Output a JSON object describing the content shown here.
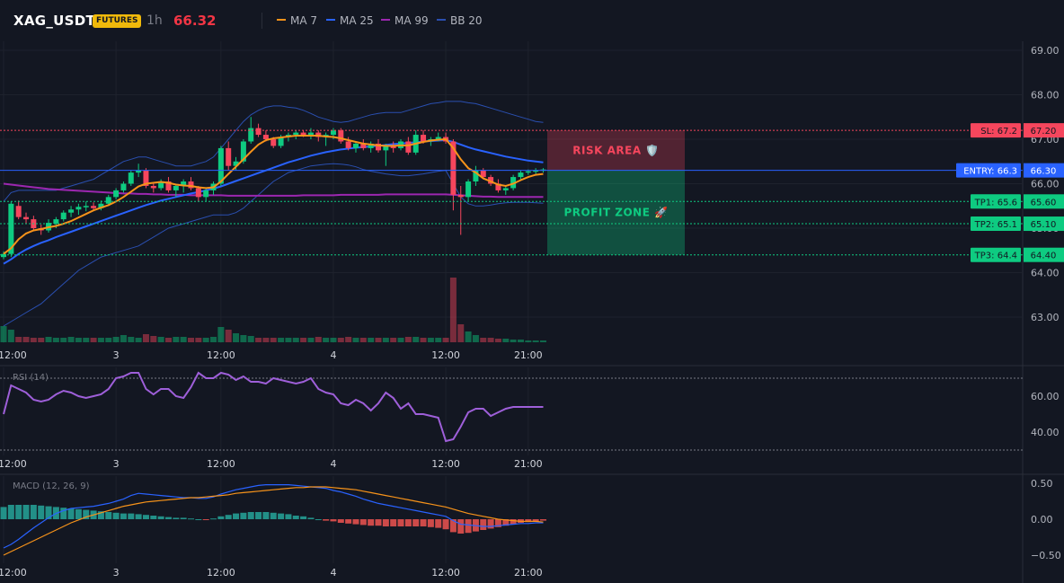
{
  "header": {
    "symbol": "XAG_USDT",
    "badge": "FUTURES",
    "timeframe": "1h",
    "last_price": "66.32",
    "legend": [
      {
        "label": "MA 7",
        "color": "#f7931a"
      },
      {
        "label": "MA 25",
        "color": "#2962ff"
      },
      {
        "label": "MA 99",
        "color": "#9c27b0"
      },
      {
        "label": "BB 20",
        "color": "#2a4fb0"
      }
    ]
  },
  "colors": {
    "up": "#0ecb81",
    "down": "#f6465d",
    "background": "#131722",
    "grid": "#1e222d"
  },
  "chart_data": [
    {
      "type": "candlestick",
      "title": "XAG_USDT",
      "ylim": [
        62.4,
        69.2
      ],
      "y_ticks": [
        "69.00",
        "68.00",
        "67.00",
        "66.00",
        "65.00",
        "64.00",
        "63.00"
      ],
      "x_ticks": [
        "12:00",
        "3",
        "12:00",
        "4",
        "12:00",
        "21:00"
      ],
      "ohlc": [
        [
          64.35,
          64.48,
          64.3,
          64.42
        ],
        [
          64.42,
          65.6,
          64.35,
          65.55
        ],
        [
          65.5,
          65.62,
          65.2,
          65.25
        ],
        [
          65.25,
          65.35,
          65.1,
          65.2
        ],
        [
          65.2,
          65.28,
          64.95,
          65.0
        ],
        [
          65.0,
          65.08,
          64.85,
          64.95
        ],
        [
          64.95,
          65.2,
          64.9,
          65.12
        ],
        [
          65.1,
          65.25,
          65.0,
          65.2
        ],
        [
          65.2,
          65.4,
          65.15,
          65.35
        ],
        [
          65.35,
          65.5,
          65.25,
          65.42
        ],
        [
          65.42,
          65.55,
          65.3,
          65.48
        ],
        [
          65.48,
          65.6,
          65.38,
          65.5
        ],
        [
          65.5,
          65.58,
          65.4,
          65.45
        ],
        [
          65.45,
          65.62,
          65.4,
          65.55
        ],
        [
          65.55,
          65.75,
          65.5,
          65.7
        ],
        [
          65.7,
          65.9,
          65.65,
          65.85
        ],
        [
          65.85,
          66.05,
          65.8,
          66.0
        ],
        [
          66.0,
          66.3,
          65.95,
          66.25
        ],
        [
          66.25,
          66.45,
          66.15,
          66.3
        ],
        [
          66.3,
          66.35,
          65.9,
          65.95
        ],
        [
          65.95,
          66.0,
          65.8,
          65.9
        ],
        [
          65.9,
          66.1,
          65.85,
          66.05
        ],
        [
          66.05,
          66.15,
          65.8,
          65.85
        ],
        [
          65.85,
          66.0,
          65.7,
          65.95
        ],
        [
          65.95,
          66.1,
          65.8,
          66.05
        ],
        [
          66.05,
          66.15,
          65.85,
          65.9
        ],
        [
          65.9,
          65.95,
          65.6,
          65.7
        ],
        [
          65.7,
          65.9,
          65.6,
          65.85
        ],
        [
          65.85,
          66.05,
          65.75,
          66.0
        ],
        [
          66.0,
          66.85,
          65.95,
          66.8
        ],
        [
          66.8,
          66.95,
          66.3,
          66.4
        ],
        [
          66.4,
          66.6,
          66.3,
          66.5
        ],
        [
          66.5,
          67.0,
          66.45,
          66.95
        ],
        [
          66.95,
          67.5,
          66.9,
          67.25
        ],
        [
          67.25,
          67.35,
          67.05,
          67.1
        ],
        [
          67.1,
          67.2,
          66.95,
          67.0
        ],
        [
          67.0,
          67.05,
          66.8,
          66.85
        ],
        [
          66.85,
          67.1,
          66.8,
          67.05
        ],
        [
          67.05,
          67.15,
          66.95,
          67.1
        ],
        [
          67.1,
          67.2,
          67.0,
          67.15
        ],
        [
          67.15,
          67.2,
          67.05,
          67.1
        ],
        [
          67.1,
          67.25,
          67.0,
          67.15
        ],
        [
          67.15,
          67.2,
          66.95,
          67.05
        ],
        [
          67.05,
          67.15,
          66.85,
          67.1
        ],
        [
          67.1,
          67.25,
          67.0,
          67.2
        ],
        [
          67.2,
          67.25,
          66.9,
          66.95
        ],
        [
          66.95,
          67.05,
          66.75,
          66.8
        ],
        [
          66.8,
          66.95,
          66.7,
          66.9
        ],
        [
          66.9,
          67.0,
          66.75,
          66.8
        ],
        [
          66.8,
          66.95,
          66.7,
          66.9
        ],
        [
          66.9,
          67.0,
          66.7,
          66.75
        ],
        [
          66.75,
          66.9,
          66.4,
          66.85
        ],
        [
          66.85,
          66.95,
          66.7,
          66.8
        ],
        [
          66.8,
          67.0,
          66.75,
          66.95
        ],
        [
          66.95,
          67.05,
          66.65,
          66.7
        ],
        [
          66.7,
          67.2,
          66.65,
          67.1
        ],
        [
          67.1,
          67.2,
          66.9,
          66.95
        ],
        [
          66.95,
          67.05,
          66.85,
          67.0
        ],
        [
          67.0,
          67.15,
          66.95,
          67.05
        ],
        [
          67.05,
          67.15,
          66.9,
          66.95
        ],
        [
          66.95,
          67.0,
          65.4,
          65.75
        ],
        [
          65.75,
          65.95,
          64.85,
          65.7
        ],
        [
          65.7,
          66.1,
          65.6,
          66.05
        ],
        [
          66.05,
          66.4,
          65.95,
          66.3
        ],
        [
          66.3,
          66.35,
          66.1,
          66.15
        ],
        [
          66.15,
          66.2,
          65.95,
          66.0
        ],
        [
          66.0,
          66.1,
          65.8,
          65.85
        ],
        [
          65.85,
          65.95,
          65.75,
          65.9
        ],
        [
          65.9,
          66.2,
          65.85,
          66.15
        ],
        [
          66.15,
          66.3,
          66.1,
          66.25
        ],
        [
          66.25,
          66.32,
          66.2,
          66.28
        ],
        [
          66.28,
          66.35,
          66.22,
          66.3
        ],
        [
          66.3,
          66.35,
          66.25,
          66.32
        ]
      ],
      "volume": [
        18,
        14,
        6,
        6,
        5,
        5,
        6,
        5,
        5,
        6,
        5,
        5,
        5,
        5,
        5,
        6,
        8,
        6,
        5,
        9,
        7,
        6,
        5,
        6,
        6,
        5,
        5,
        5,
        6,
        17,
        14,
        10,
        8,
        7,
        5,
        5,
        5,
        5,
        5,
        5,
        5,
        5,
        6,
        5,
        5,
        5,
        6,
        5,
        5,
        5,
        5,
        5,
        5,
        5,
        6,
        6,
        5,
        5,
        5,
        5,
        72,
        20,
        12,
        8,
        5,
        5,
        4,
        4,
        3,
        3,
        2,
        2,
        2
      ],
      "ma7": [
        64.42,
        64.55,
        64.75,
        64.88,
        64.95,
        64.98,
        65.02,
        65.05,
        65.1,
        65.16,
        65.24,
        65.32,
        65.4,
        65.46,
        65.52,
        65.6,
        65.7,
        65.82,
        65.94,
        66.0,
        66.02,
        66.04,
        66.02,
        65.98,
        65.96,
        65.95,
        65.92,
        65.9,
        65.92,
        66.05,
        66.22,
        66.38,
        66.55,
        66.72,
        66.88,
        66.98,
        67.02,
        67.04,
        67.06,
        67.08,
        67.08,
        67.08,
        67.08,
        67.06,
        67.05,
        67.02,
        66.98,
        66.94,
        66.9,
        66.88,
        66.86,
        66.85,
        66.85,
        66.86,
        66.86,
        66.9,
        66.94,
        66.97,
        66.99,
        67.0,
        66.8,
        66.55,
        66.35,
        66.25,
        66.12,
        66.05,
        65.98,
        65.95,
        66.0,
        66.08,
        66.15,
        66.2,
        66.22
      ],
      "ma25": [
        64.2,
        64.3,
        64.42,
        64.52,
        64.6,
        64.67,
        64.73,
        64.8,
        64.86,
        64.92,
        64.98,
        65.04,
        65.1,
        65.16,
        65.22,
        65.28,
        65.34,
        65.4,
        65.46,
        65.52,
        65.57,
        65.62,
        65.66,
        65.7,
        65.74,
        65.78,
        65.81,
        65.85,
        65.89,
        65.94,
        66.0,
        66.06,
        66.12,
        66.18,
        66.24,
        66.3,
        66.36,
        66.42,
        66.48,
        66.53,
        66.58,
        66.63,
        66.67,
        66.71,
        66.74,
        66.77,
        66.79,
        66.81,
        66.82,
        66.84,
        66.85,
        66.87,
        66.89,
        66.9,
        66.92,
        66.93,
        66.95,
        66.96,
        66.97,
        66.98,
        66.94,
        66.88,
        66.82,
        66.77,
        66.73,
        66.69,
        66.65,
        66.61,
        66.58,
        66.55,
        66.52,
        66.5,
        66.48
      ],
      "ma99": [
        66.0,
        65.98,
        65.96,
        65.94,
        65.92,
        65.9,
        65.88,
        65.87,
        65.86,
        65.85,
        65.84,
        65.83,
        65.82,
        65.81,
        65.8,
        65.79,
        65.78,
        65.78,
        65.77,
        65.77,
        65.76,
        65.76,
        65.75,
        65.75,
        65.75,
        65.74,
        65.74,
        65.74,
        65.74,
        65.74,
        65.73,
        65.73,
        65.73,
        65.73,
        65.73,
        65.73,
        65.73,
        65.73,
        65.73,
        65.73,
        65.74,
        65.74,
        65.74,
        65.74,
        65.74,
        65.75,
        65.75,
        65.75,
        65.75,
        65.75,
        65.75,
        65.76,
        65.76,
        65.76,
        65.76,
        65.76,
        65.76,
        65.76,
        65.76,
        65.76,
        65.75,
        65.74,
        65.73,
        65.72,
        65.71,
        65.71,
        65.7,
        65.7,
        65.7,
        65.7,
        65.7,
        65.7,
        65.7
      ],
      "bb_upper": [
        65.6,
        65.8,
        65.85,
        65.85,
        65.85,
        65.85,
        65.85,
        65.85,
        65.9,
        65.95,
        66.0,
        66.05,
        66.1,
        66.2,
        66.3,
        66.4,
        66.5,
        66.55,
        66.6,
        66.6,
        66.55,
        66.5,
        66.45,
        66.4,
        66.4,
        66.4,
        66.45,
        66.5,
        66.6,
        66.8,
        67.0,
        67.2,
        67.4,
        67.55,
        67.65,
        67.72,
        67.75,
        67.75,
        67.72,
        67.7,
        67.65,
        67.58,
        67.5,
        67.45,
        67.4,
        67.38,
        67.4,
        67.45,
        67.5,
        67.55,
        67.58,
        67.6,
        67.6,
        67.6,
        67.65,
        67.7,
        67.75,
        67.8,
        67.82,
        67.85,
        67.85,
        67.85,
        67.82,
        67.8,
        67.75,
        67.7,
        67.65,
        67.6,
        67.55,
        67.5,
        67.45,
        67.4,
        67.38
      ],
      "bb_lower": [
        62.8,
        62.9,
        63.0,
        63.1,
        63.2,
        63.3,
        63.45,
        63.6,
        63.75,
        63.9,
        64.05,
        64.15,
        64.25,
        64.35,
        64.4,
        64.45,
        64.5,
        64.55,
        64.6,
        64.7,
        64.8,
        64.9,
        65.0,
        65.05,
        65.1,
        65.15,
        65.2,
        65.25,
        65.3,
        65.3,
        65.3,
        65.35,
        65.45,
        65.6,
        65.75,
        65.9,
        66.05,
        66.15,
        66.25,
        66.3,
        66.35,
        66.4,
        66.42,
        66.44,
        66.45,
        66.44,
        66.42,
        66.38,
        66.32,
        66.28,
        66.25,
        66.22,
        66.2,
        66.18,
        66.18,
        66.2,
        66.22,
        66.25,
        66.28,
        66.3,
        66.0,
        65.7,
        65.55,
        65.5,
        65.5,
        65.52,
        65.55,
        65.57,
        65.58,
        65.58,
        65.58,
        65.57,
        65.56
      ],
      "levels": [
        {
          "label": "SL: 67.2",
          "axis_label": "67.20",
          "price": 67.2,
          "color": "#f6465d"
        },
        {
          "label": "ENTRY: 66.3",
          "axis_label": "66.30",
          "price": 66.3,
          "color": "#2962ff"
        },
        {
          "label": "TP1: 65.6",
          "axis_label": "65.60",
          "price": 65.6,
          "color": "#0ecb81"
        },
        {
          "label": "TP2: 65.1",
          "axis_label": "65.10",
          "price": 65.1,
          "color": "#0ecb81"
        },
        {
          "label": "TP3: 64.4",
          "axis_label": "64.40",
          "price": 64.4,
          "color": "#0ecb81"
        }
      ],
      "zones": [
        {
          "label": "RISK AREA 🛡️",
          "from": 66.3,
          "to": 67.2,
          "color": "#f6465d"
        },
        {
          "label": "PROFIT ZONE 🚀",
          "from": 64.4,
          "to": 66.3,
          "color": "#0ecb81"
        }
      ]
    },
    {
      "type": "line",
      "title": "RSI (14)",
      "ylim": [
        30,
        75
      ],
      "y_ticks": [
        "60.00",
        "40.00"
      ],
      "x_ticks": [
        "12:00",
        "3",
        "12:00",
        "4",
        "12:00",
        "21:00"
      ],
      "reference_lines": [
        70,
        30
      ],
      "values": [
        50,
        66,
        64,
        62,
        58,
        57,
        58,
        61,
        63,
        62,
        60,
        59,
        60,
        61,
        64,
        70,
        71,
        73,
        73,
        64,
        61,
        64,
        64,
        60,
        59,
        65,
        73,
        70,
        70,
        73,
        72,
        69,
        71,
        68,
        68,
        67,
        70,
        69,
        68,
        67,
        68,
        70,
        64,
        62,
        61,
        56,
        55,
        58,
        56,
        52,
        56,
        62,
        59,
        53,
        56,
        50,
        50,
        49,
        48,
        35,
        36,
        43,
        51,
        53,
        53,
        49,
        51,
        53,
        54,
        54,
        54,
        54,
        54
      ]
    },
    {
      "type": "bar",
      "title": "MACD (12, 26, 9)",
      "ylim": [
        -0.6,
        0.6
      ],
      "y_ticks": [
        "0.50",
        "0.00",
        "−0.50"
      ],
      "x_ticks": [
        "12:00",
        "3",
        "12:00",
        "4",
        "12:00",
        "21:00"
      ],
      "histogram": [
        0.17,
        0.2,
        0.2,
        0.2,
        0.2,
        0.19,
        0.18,
        0.17,
        0.16,
        0.15,
        0.14,
        0.13,
        0.12,
        0.11,
        0.1,
        0.09,
        0.08,
        0.08,
        0.07,
        0.06,
        0.05,
        0.04,
        0.03,
        0.02,
        0.02,
        0.01,
        0.0,
        -0.01,
        0.01,
        0.04,
        0.06,
        0.08,
        0.09,
        0.1,
        0.1,
        0.1,
        0.09,
        0.08,
        0.07,
        0.05,
        0.04,
        0.02,
        0.0,
        -0.02,
        -0.03,
        -0.05,
        -0.06,
        -0.07,
        -0.08,
        -0.09,
        -0.09,
        -0.1,
        -0.1,
        -0.1,
        -0.1,
        -0.1,
        -0.1,
        -0.11,
        -0.12,
        -0.14,
        -0.18,
        -0.2,
        -0.19,
        -0.17,
        -0.15,
        -0.13,
        -0.11,
        -0.09,
        -0.07,
        -0.05,
        -0.04,
        -0.03,
        -0.02
      ],
      "macd": [
        -0.4,
        -0.35,
        -0.28,
        -0.2,
        -0.12,
        -0.05,
        0.02,
        0.08,
        0.12,
        0.15,
        0.16,
        0.17,
        0.18,
        0.2,
        0.22,
        0.25,
        0.28,
        0.33,
        0.36,
        0.35,
        0.34,
        0.33,
        0.32,
        0.31,
        0.3,
        0.3,
        0.29,
        0.29,
        0.31,
        0.35,
        0.38,
        0.41,
        0.43,
        0.45,
        0.47,
        0.48,
        0.48,
        0.48,
        0.48,
        0.47,
        0.46,
        0.45,
        0.44,
        0.43,
        0.4,
        0.38,
        0.35,
        0.32,
        0.28,
        0.25,
        0.22,
        0.2,
        0.18,
        0.16,
        0.14,
        0.12,
        0.1,
        0.08,
        0.06,
        0.04,
        -0.02,
        -0.07,
        -0.08,
        -0.09,
        -0.1,
        -0.1,
        -0.09,
        -0.08,
        -0.07,
        -0.06,
        -0.06,
        -0.05,
        -0.05
      ],
      "signal": [
        -0.5,
        -0.45,
        -0.4,
        -0.35,
        -0.3,
        -0.25,
        -0.2,
        -0.15,
        -0.1,
        -0.05,
        -0.01,
        0.03,
        0.06,
        0.09,
        0.12,
        0.15,
        0.18,
        0.2,
        0.22,
        0.24,
        0.25,
        0.26,
        0.27,
        0.28,
        0.29,
        0.3,
        0.3,
        0.31,
        0.32,
        0.33,
        0.34,
        0.36,
        0.37,
        0.38,
        0.39,
        0.4,
        0.41,
        0.42,
        0.43,
        0.44,
        0.44,
        0.45,
        0.45,
        0.45,
        0.44,
        0.43,
        0.42,
        0.41,
        0.39,
        0.37,
        0.35,
        0.33,
        0.31,
        0.29,
        0.27,
        0.25,
        0.23,
        0.21,
        0.19,
        0.17,
        0.14,
        0.11,
        0.08,
        0.06,
        0.04,
        0.02,
        0.0,
        -0.01,
        -0.02,
        -0.03,
        -0.03,
        -0.03,
        -0.04
      ]
    }
  ]
}
